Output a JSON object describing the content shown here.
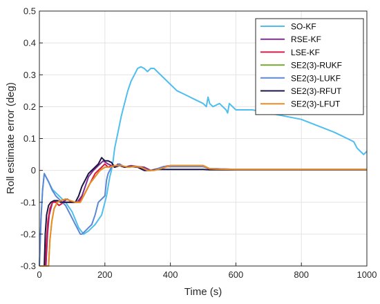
{
  "chart_data": {
    "type": "line",
    "xlabel": "Time (s)",
    "ylabel": "Roll estimate error (deg)",
    "xlim": [
      0,
      1000
    ],
    "ylim": [
      -0.3,
      0.5
    ],
    "xticks": [
      0,
      200,
      400,
      600,
      800,
      1000
    ],
    "yticks": [
      -0.3,
      -0.2,
      -0.1,
      0,
      0.1,
      0.2,
      0.3,
      0.4,
      0.5
    ],
    "xtick_labels": [
      "0",
      "200",
      "400",
      "600",
      "800",
      "1000"
    ],
    "ytick_labels": [
      "-0.3",
      "-0.2",
      "-0.1",
      "0",
      "0.1",
      "0.2",
      "0.3",
      "0.4",
      "0.5"
    ],
    "grid": true,
    "legend_position": "top-right",
    "series": [
      {
        "name": "SO-KF",
        "color": "#4DBEEE",
        "x": [
          0,
          5,
          10,
          15,
          25,
          40,
          60,
          80,
          100,
          120,
          135,
          150,
          170,
          190,
          205,
          215,
          220,
          225,
          230,
          240,
          250,
          260,
          270,
          280,
          290,
          300,
          310,
          320,
          330,
          340,
          350,
          360,
          380,
          400,
          420,
          440,
          460,
          480,
          500,
          510,
          515,
          520,
          530,
          550,
          570,
          575,
          580,
          600,
          650,
          700,
          750,
          800,
          850,
          900,
          940,
          960,
          970,
          980,
          990,
          1000
        ],
        "y": [
          -0.3,
          -0.15,
          -0.06,
          -0.01,
          -0.03,
          -0.06,
          -0.08,
          -0.1,
          -0.13,
          -0.18,
          -0.2,
          -0.19,
          -0.17,
          -0.14,
          -0.08,
          -0.02,
          0.0,
          0.03,
          0.07,
          0.12,
          0.17,
          0.21,
          0.25,
          0.28,
          0.3,
          0.32,
          0.325,
          0.32,
          0.31,
          0.32,
          0.32,
          0.31,
          0.29,
          0.27,
          0.25,
          0.24,
          0.23,
          0.22,
          0.21,
          0.2,
          0.23,
          0.21,
          0.2,
          0.21,
          0.19,
          0.18,
          0.21,
          0.19,
          0.19,
          0.18,
          0.17,
          0.16,
          0.14,
          0.12,
          0.1,
          0.09,
          0.07,
          0.06,
          0.05,
          0.06
        ]
      },
      {
        "name": "RSE-KF",
        "color": "#7E2F8E",
        "x": [
          0,
          20,
          25,
          30,
          40,
          55,
          70,
          85,
          100,
          115,
          130,
          140,
          150,
          165,
          175,
          185,
          195,
          210,
          220,
          230,
          240,
          260,
          280,
          300,
          320,
          340,
          360,
          380,
          400,
          450,
          500,
          520,
          540,
          600,
          700,
          800,
          900,
          1000
        ],
        "y": [
          -0.3,
          -0.3,
          -0.2,
          -0.14,
          -0.1,
          -0.095,
          -0.1,
          -0.09,
          -0.1,
          -0.1,
          -0.08,
          -0.05,
          -0.02,
          0.0,
          0.01,
          0.02,
          0.03,
          0.02,
          0.015,
          0.01,
          0.02,
          0.01,
          0.015,
          0.012,
          0.01,
          0.0,
          0.005,
          0.012,
          0.012,
          0.012,
          0.012,
          0.005,
          0.005,
          0.003,
          0.003,
          0.003,
          0.003,
          0.003
        ]
      },
      {
        "name": "LSE-KF",
        "color": "#D81B45",
        "x": [
          0,
          18,
          22,
          26,
          32,
          40,
          50,
          60,
          75,
          90,
          105,
          120,
          135,
          150,
          160,
          170,
          180,
          190,
          200,
          210,
          220,
          230,
          245,
          260,
          280,
          300,
          320,
          340,
          360,
          380,
          400,
          450,
          500,
          520,
          540,
          600,
          700,
          800,
          900,
          1000
        ],
        "y": [
          -0.3,
          -0.3,
          -0.22,
          -0.16,
          -0.12,
          -0.1,
          -0.1,
          -0.11,
          -0.1,
          -0.1,
          -0.1,
          -0.1,
          -0.08,
          -0.05,
          -0.03,
          -0.01,
          0.0,
          0.01,
          0.02,
          0.01,
          0.015,
          0.01,
          0.02,
          0.01,
          0.012,
          0.01,
          0.0,
          0.0,
          0.005,
          0.012,
          0.015,
          0.015,
          0.015,
          0.005,
          0.004,
          0.003,
          0.003,
          0.003,
          0.003,
          0.003
        ]
      },
      {
        "name": "SE2(3)-RUKF",
        "color": "#77AC30",
        "x": [
          0,
          28,
          32,
          38,
          45,
          55,
          65,
          80,
          95,
          110,
          125,
          140,
          155,
          170,
          185,
          200,
          215,
          230,
          250,
          270,
          290,
          310,
          330,
          350,
          370,
          400,
          450,
          500,
          520,
          540,
          600,
          700,
          800,
          900,
          1000
        ],
        "y": [
          -0.3,
          -0.3,
          -0.22,
          -0.16,
          -0.12,
          -0.1,
          -0.095,
          -0.09,
          -0.095,
          -0.1,
          -0.1,
          -0.07,
          -0.04,
          -0.02,
          0.0,
          0.01,
          0.01,
          0.015,
          0.015,
          0.01,
          0.012,
          0.01,
          0.0,
          0.0,
          0.005,
          0.015,
          0.015,
          0.015,
          0.005,
          0.004,
          0.003,
          0.003,
          0.003,
          0.003,
          0.003
        ]
      },
      {
        "name": "SE2(3)-LUKF",
        "color": "#5C87D6",
        "x": [
          0,
          5,
          10,
          15,
          20,
          28,
          38,
          50,
          60,
          70,
          80,
          90,
          100,
          110,
          120,
          125,
          130,
          140,
          150,
          160,
          170,
          180,
          190,
          200,
          205,
          210,
          215,
          220,
          225,
          230,
          245,
          260,
          280,
          300,
          320,
          340,
          360,
          380,
          400,
          450,
          500,
          520,
          540,
          600,
          700,
          800,
          900,
          1000
        ],
        "y": [
          -0.3,
          -0.15,
          -0.06,
          -0.01,
          -0.02,
          -0.035,
          -0.06,
          -0.08,
          -0.09,
          -0.1,
          -0.11,
          -0.13,
          -0.15,
          -0.17,
          -0.19,
          -0.2,
          -0.2,
          -0.19,
          -0.18,
          -0.17,
          -0.14,
          -0.1,
          -0.09,
          -0.08,
          -0.03,
          -0.01,
          0.0,
          0.01,
          0.015,
          0.01,
          0.02,
          0.01,
          0.012,
          0.01,
          0.0,
          0.0,
          0.005,
          0.012,
          0.012,
          0.012,
          0.012,
          0.005,
          0.005,
          0.003,
          0.003,
          0.003,
          0.003,
          0.003
        ]
      },
      {
        "name": "SE2(3)-RFUT",
        "color": "#1B1547",
        "x": [
          0,
          15,
          18,
          22,
          28,
          35,
          45,
          55,
          65,
          80,
          95,
          110,
          120,
          130,
          140,
          150,
          160,
          170,
          180,
          190,
          200,
          210,
          220,
          230,
          245,
          260,
          280,
          300,
          320,
          340,
          360,
          380,
          400,
          450,
          500,
          520,
          540,
          600,
          700,
          800,
          900,
          1000
        ],
        "y": [
          -0.3,
          -0.3,
          -0.2,
          -0.14,
          -0.11,
          -0.1,
          -0.095,
          -0.095,
          -0.1,
          -0.1,
          -0.1,
          -0.1,
          -0.08,
          -0.05,
          -0.03,
          -0.01,
          0.0,
          0.01,
          0.02,
          0.04,
          0.03,
          0.03,
          0.025,
          0.01,
          0.015,
          0.01,
          0.012,
          0.01,
          0.0,
          0.0,
          0.003,
          0.003,
          0.003,
          0.003,
          0.003,
          0.002,
          0.002,
          0.002,
          0.002,
          0.002,
          0.002,
          0.002
        ]
      },
      {
        "name": "SE2(3)-LFUT",
        "color": "#ED8C27",
        "x": [
          0,
          28,
          32,
          38,
          45,
          55,
          65,
          80,
          95,
          110,
          125,
          140,
          155,
          170,
          185,
          200,
          215,
          230,
          250,
          270,
          290,
          310,
          330,
          350,
          370,
          400,
          450,
          500,
          520,
          540,
          600,
          700,
          800,
          900,
          1000
        ],
        "y": [
          -0.3,
          -0.3,
          -0.22,
          -0.16,
          -0.12,
          -0.1,
          -0.095,
          -0.09,
          -0.095,
          -0.1,
          -0.1,
          -0.07,
          -0.04,
          -0.02,
          0.0,
          0.01,
          0.01,
          0.015,
          0.015,
          0.01,
          0.012,
          0.01,
          0.0,
          0.0,
          0.005,
          0.015,
          0.015,
          0.015,
          0.005,
          0.004,
          0.003,
          0.003,
          0.003,
          0.003,
          0.003
        ]
      }
    ]
  }
}
